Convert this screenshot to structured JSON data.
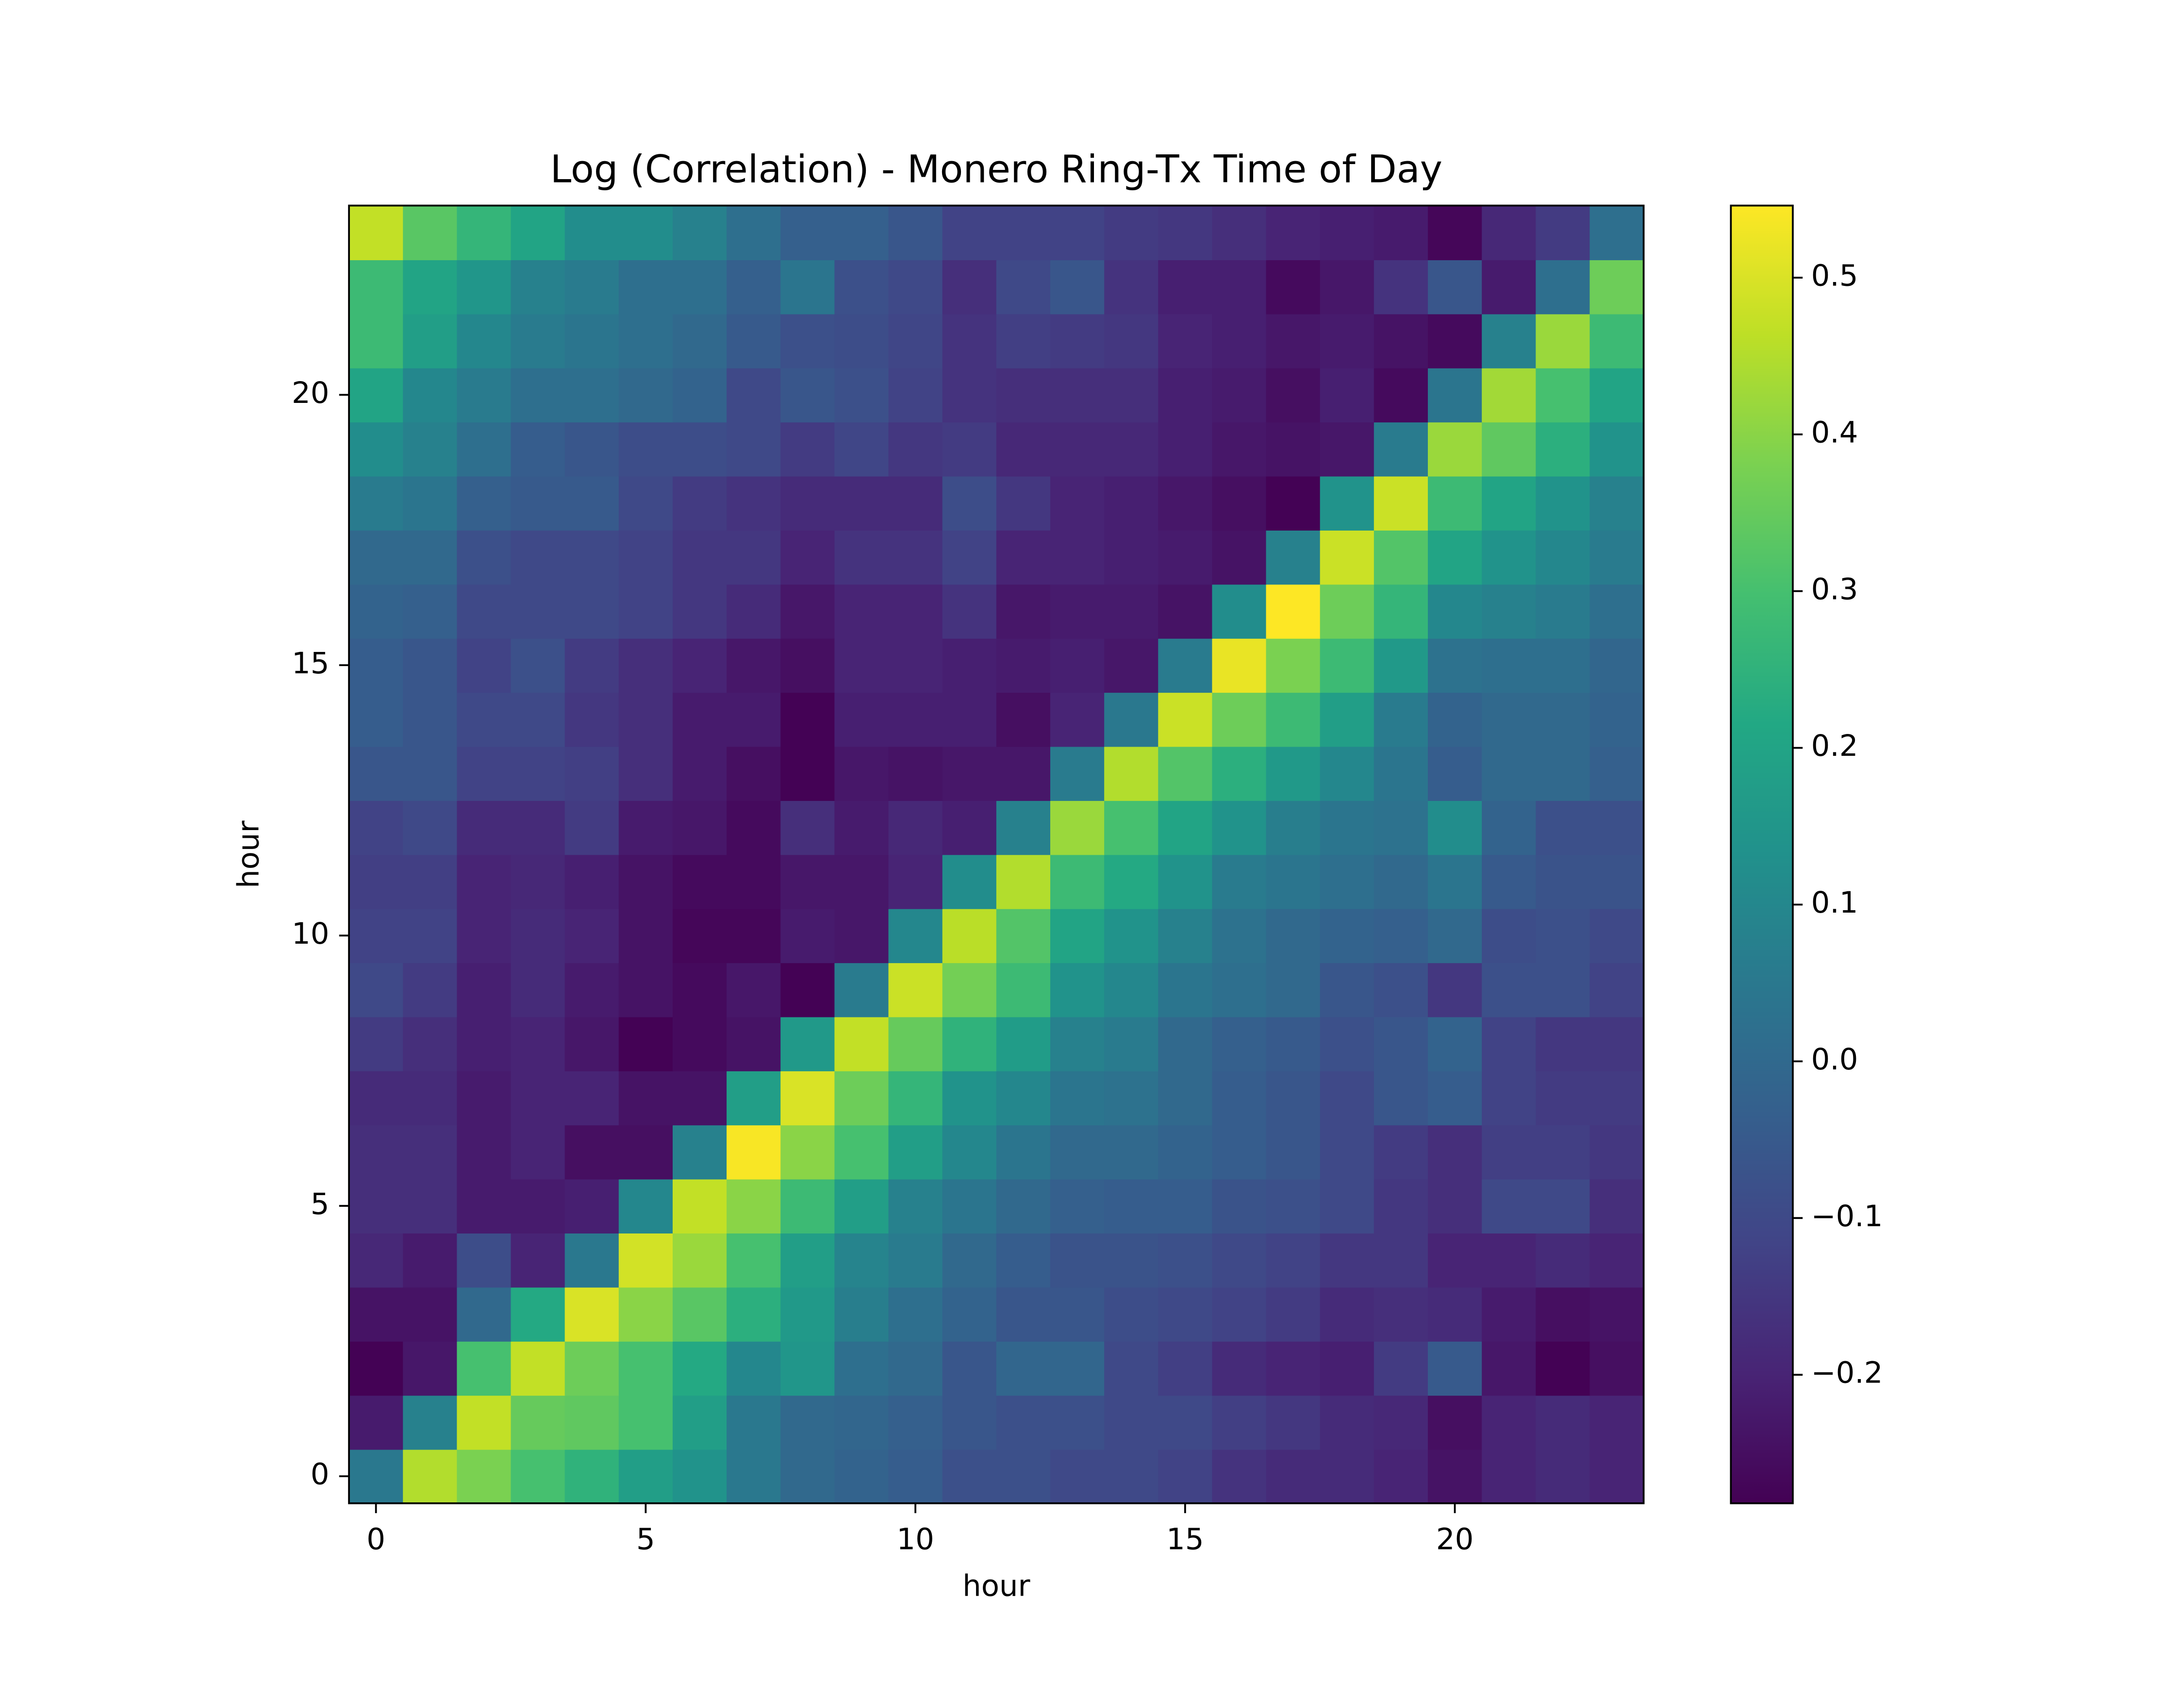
{
  "chart_data": {
    "type": "heatmap",
    "title": "Log (Correlation) - Monero Ring-Tx Time of Day",
    "xlabel": "hour",
    "ylabel": "hour",
    "colormap": "viridis",
    "xlim": [
      -0.5,
      23.5
    ],
    "ylim": [
      -0.5,
      23.5
    ],
    "xticks": [
      0,
      5,
      10,
      15,
      20
    ],
    "yticks": [
      0,
      5,
      10,
      15,
      20
    ],
    "clim": [
      -0.282,
      0.546
    ],
    "cticks": [
      {
        "value": -0.2,
        "label": "−0.2"
      },
      {
        "value": -0.1,
        "label": "−0.1"
      },
      {
        "value": 0.0,
        "label": "0.0"
      },
      0.1,
      0.2,
      0.3,
      0.4,
      0.5
    ],
    "values": [
      [
        0.05,
        0.45,
        0.38,
        0.3,
        0.25,
        0.18,
        0.14,
        0.05,
        0.0,
        -0.02,
        -0.04,
        -0.08,
        -0.08,
        -0.1,
        -0.1,
        -0.12,
        -0.16,
        -0.18,
        -0.18,
        -0.2,
        -0.24,
        -0.2,
        -0.18,
        -0.2
      ],
      [
        -0.22,
        0.08,
        0.47,
        0.35,
        0.34,
        0.3,
        0.18,
        0.05,
        0.0,
        -0.01,
        -0.03,
        -0.06,
        -0.08,
        -0.08,
        -0.1,
        -0.1,
        -0.13,
        -0.15,
        -0.18,
        -0.19,
        -0.25,
        -0.2,
        -0.18,
        -0.2
      ],
      [
        -0.28,
        -0.23,
        0.3,
        0.47,
        0.36,
        0.3,
        0.22,
        0.1,
        0.15,
        0.02,
        0.0,
        -0.06,
        -0.01,
        -0.01,
        -0.1,
        -0.13,
        -0.18,
        -0.2,
        -0.21,
        -0.14,
        -0.05,
        -0.23,
        -0.28,
        -0.25
      ],
      [
        -0.24,
        -0.24,
        0.0,
        0.22,
        0.5,
        0.4,
        0.33,
        0.24,
        0.16,
        0.07,
        0.02,
        -0.02,
        -0.06,
        -0.06,
        -0.09,
        -0.1,
        -0.12,
        -0.14,
        -0.18,
        -0.17,
        -0.18,
        -0.22,
        -0.25,
        -0.24
      ],
      [
        -0.19,
        -0.22,
        -0.09,
        -0.2,
        0.05,
        0.49,
        0.42,
        0.3,
        0.18,
        0.09,
        0.06,
        0.0,
        -0.04,
        -0.07,
        -0.07,
        -0.08,
        -0.1,
        -0.12,
        -0.15,
        -0.15,
        -0.2,
        -0.2,
        -0.18,
        -0.2
      ],
      [
        -0.17,
        -0.17,
        -0.22,
        -0.22,
        -0.21,
        0.1,
        0.47,
        0.4,
        0.28,
        0.18,
        0.08,
        0.04,
        0.0,
        -0.03,
        -0.04,
        -0.04,
        -0.07,
        -0.08,
        -0.1,
        -0.15,
        -0.17,
        -0.1,
        -0.1,
        -0.17
      ],
      [
        -0.17,
        -0.17,
        -0.22,
        -0.2,
        -0.25,
        -0.25,
        0.08,
        0.54,
        0.4,
        0.3,
        0.18,
        0.1,
        0.04,
        0.0,
        0.0,
        -0.02,
        -0.04,
        -0.06,
        -0.1,
        -0.14,
        -0.17,
        -0.13,
        -0.13,
        -0.15
      ],
      [
        -0.18,
        -0.18,
        -0.22,
        -0.2,
        -0.2,
        -0.24,
        -0.24,
        0.18,
        0.5,
        0.36,
        0.26,
        0.14,
        0.1,
        0.04,
        0.03,
        0.0,
        -0.04,
        -0.06,
        -0.1,
        -0.06,
        -0.04,
        -0.12,
        -0.14,
        -0.14
      ],
      [
        -0.14,
        -0.17,
        -0.21,
        -0.2,
        -0.23,
        -0.28,
        -0.26,
        -0.24,
        0.16,
        0.47,
        0.35,
        0.25,
        0.17,
        0.08,
        0.06,
        0.0,
        -0.03,
        -0.05,
        -0.08,
        -0.06,
        -0.02,
        -0.12,
        -0.15,
        -0.15
      ],
      [
        -0.1,
        -0.14,
        -0.21,
        -0.18,
        -0.22,
        -0.24,
        -0.26,
        -0.23,
        -0.28,
        0.06,
        0.48,
        0.37,
        0.28,
        0.14,
        0.1,
        0.04,
        0.02,
        0.0,
        -0.06,
        -0.08,
        -0.15,
        -0.08,
        -0.08,
        -0.12
      ],
      [
        -0.12,
        -0.12,
        -0.2,
        -0.18,
        -0.2,
        -0.24,
        -0.27,
        -0.27,
        -0.22,
        -0.23,
        0.1,
        0.46,
        0.32,
        0.2,
        0.14,
        0.08,
        0.03,
        0.0,
        -0.02,
        -0.03,
        0.0,
        -0.09,
        -0.08,
        -0.1
      ],
      [
        -0.13,
        -0.13,
        -0.2,
        -0.19,
        -0.21,
        -0.24,
        -0.26,
        -0.26,
        -0.23,
        -0.23,
        -0.2,
        0.12,
        0.45,
        0.28,
        0.22,
        0.14,
        0.06,
        0.04,
        0.02,
        0.0,
        0.04,
        -0.05,
        -0.07,
        -0.07
      ],
      [
        -0.12,
        -0.1,
        -0.18,
        -0.18,
        -0.14,
        -0.22,
        -0.23,
        -0.26,
        -0.17,
        -0.22,
        -0.19,
        -0.21,
        0.08,
        0.42,
        0.3,
        0.2,
        0.14,
        0.07,
        0.04,
        0.03,
        0.12,
        -0.02,
        -0.08,
        -0.08
      ],
      [
        -0.06,
        -0.06,
        -0.12,
        -0.12,
        -0.13,
        -0.17,
        -0.22,
        -0.25,
        -0.28,
        -0.23,
        -0.24,
        -0.23,
        -0.23,
        0.06,
        0.45,
        0.32,
        0.24,
        0.16,
        0.1,
        0.04,
        -0.04,
        0.0,
        0.0,
        -0.03
      ],
      [
        -0.04,
        -0.06,
        -0.1,
        -0.1,
        -0.15,
        -0.17,
        -0.22,
        -0.22,
        -0.28,
        -0.21,
        -0.21,
        -0.21,
        -0.25,
        -0.2,
        0.05,
        0.48,
        0.36,
        0.28,
        0.18,
        0.06,
        -0.02,
        0.0,
        0.0,
        -0.02
      ],
      [
        -0.04,
        -0.06,
        -0.12,
        -0.08,
        -0.14,
        -0.17,
        -0.2,
        -0.23,
        -0.25,
        -0.2,
        -0.2,
        -0.21,
        -0.22,
        -0.21,
        -0.23,
        0.06,
        0.52,
        0.38,
        0.28,
        0.16,
        0.03,
        0.02,
        0.02,
        -0.01
      ],
      [
        -0.02,
        -0.03,
        -0.1,
        -0.1,
        -0.1,
        -0.12,
        -0.15,
        -0.18,
        -0.23,
        -0.2,
        -0.2,
        -0.16,
        -0.23,
        -0.22,
        -0.22,
        -0.24,
        0.12,
        0.55,
        0.36,
        0.26,
        0.1,
        0.08,
        0.06,
        0.02
      ],
      [
        0.0,
        0.0,
        -0.08,
        -0.1,
        -0.1,
        -0.12,
        -0.15,
        -0.15,
        -0.2,
        -0.16,
        -0.16,
        -0.12,
        -0.2,
        -0.2,
        -0.21,
        -0.22,
        -0.24,
        0.08,
        0.48,
        0.32,
        0.2,
        0.14,
        0.1,
        0.06
      ],
      [
        0.06,
        0.04,
        -0.03,
        -0.05,
        -0.05,
        -0.1,
        -0.14,
        -0.16,
        -0.18,
        -0.18,
        -0.18,
        -0.09,
        -0.15,
        -0.2,
        -0.21,
        -0.23,
        -0.25,
        -0.28,
        0.14,
        0.48,
        0.28,
        0.2,
        0.14,
        0.08
      ],
      [
        0.12,
        0.08,
        0.02,
        -0.04,
        -0.06,
        -0.09,
        -0.09,
        -0.1,
        -0.14,
        -0.11,
        -0.15,
        -0.14,
        -0.19,
        -0.19,
        -0.19,
        -0.21,
        -0.23,
        -0.24,
        -0.23,
        0.06,
        0.42,
        0.34,
        0.24,
        0.14
      ],
      [
        0.2,
        0.1,
        0.06,
        0.02,
        0.02,
        0.0,
        -0.02,
        -0.1,
        -0.06,
        -0.08,
        -0.12,
        -0.16,
        -0.17,
        -0.17,
        -0.17,
        -0.21,
        -0.22,
        -0.25,
        -0.21,
        -0.26,
        0.04,
        0.43,
        0.3,
        0.2
      ],
      [
        0.28,
        0.18,
        0.1,
        0.06,
        0.04,
        0.02,
        0.0,
        -0.05,
        -0.08,
        -0.09,
        -0.11,
        -0.16,
        -0.13,
        -0.14,
        -0.15,
        -0.2,
        -0.21,
        -0.23,
        -0.22,
        -0.24,
        -0.26,
        0.08,
        0.42,
        0.28
      ],
      [
        0.28,
        0.2,
        0.15,
        0.08,
        0.06,
        0.02,
        0.02,
        -0.03,
        0.04,
        -0.08,
        -0.1,
        -0.17,
        -0.1,
        -0.06,
        -0.16,
        -0.21,
        -0.21,
        -0.26,
        -0.23,
        -0.16,
        -0.06,
        -0.22,
        0.02,
        0.36
      ],
      [
        0.47,
        0.33,
        0.26,
        0.2,
        0.12,
        0.12,
        0.08,
        0.02,
        -0.03,
        -0.03,
        -0.06,
        -0.12,
        -0.12,
        -0.12,
        -0.14,
        -0.15,
        -0.17,
        -0.2,
        -0.21,
        -0.22,
        -0.27,
        -0.19,
        -0.14,
        0.02
      ]
    ]
  }
}
